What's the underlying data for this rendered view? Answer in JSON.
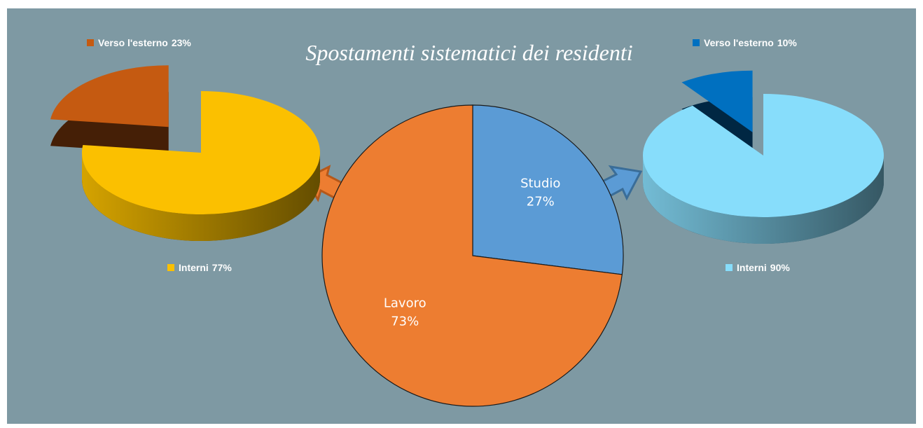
{
  "chart_data": [
    {
      "type": "pie",
      "title": "Spostamenti sistematici dei residenti",
      "categories": [
        "Studio",
        "Lavoro"
      ],
      "values": [
        27,
        73
      ],
      "value_labels": [
        "27%",
        "73%"
      ],
      "colors": [
        "#5b9bd5",
        "#ed7d31"
      ]
    },
    {
      "type": "pie3d",
      "categories": [
        "Verso l'esterno",
        "Interni"
      ],
      "values": [
        23,
        77
      ],
      "value_labels": [
        "23%",
        "77%"
      ],
      "colors": [
        "#c55a11",
        "#fbc000"
      ],
      "legend": true
    },
    {
      "type": "pie3d",
      "categories": [
        "Verso l'esterno",
        "Interni"
      ],
      "values": [
        10,
        90
      ],
      "value_labels": [
        "10%",
        "90%"
      ],
      "colors": [
        "#0070c0",
        "#87ddfb"
      ],
      "legend": true
    }
  ]
}
